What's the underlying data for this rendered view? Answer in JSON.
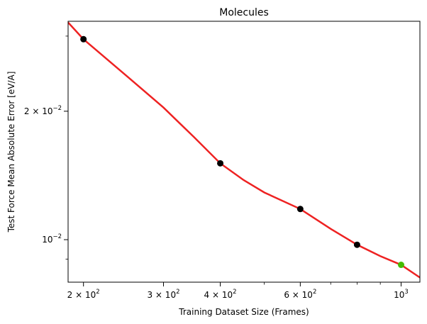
{
  "chart_data": {
    "type": "scatter",
    "title": "Molecules",
    "xlabel": "Training Dataset Size (Frames)",
    "ylabel": "Test Force Mean Absolute Error [eV/A]",
    "xscale": "log",
    "yscale": "log",
    "xlim": [
      185,
      1100
    ],
    "ylim": [
      0.00795,
      0.0325
    ],
    "grid": false,
    "x_ticks": [
      {
        "value": 200,
        "base": "2 × 10",
        "exp": "2"
      },
      {
        "value": 300,
        "base": "3 × 10",
        "exp": "2"
      },
      {
        "value": 400,
        "base": "4 × 10",
        "exp": "2"
      },
      {
        "value": 600,
        "base": "6 × 10",
        "exp": "2"
      },
      {
        "value": 1000,
        "base": "10",
        "exp": "3"
      }
    ],
    "x_minor_ticks": [
      500,
      700,
      800,
      900
    ],
    "y_ticks": [
      {
        "value": 0.02,
        "base": "2 × 10",
        "exp": "−2"
      },
      {
        "value": 0.01,
        "base": "10",
        "exp": "−2"
      }
    ],
    "y_minor_ticks": [
      0.009,
      0.03
    ],
    "series": [
      {
        "kind": "points",
        "color": "#000000",
        "x": [
          200,
          400,
          600,
          800
        ],
        "y": [
          0.0295,
          0.0151,
          0.0118,
          0.00973
        ]
      },
      {
        "kind": "points",
        "color": "#44bb00",
        "x": [
          1000
        ],
        "y": [
          0.00873
        ]
      },
      {
        "kind": "fit-line",
        "color": "#ee2222",
        "x": [
          185,
          200,
          250,
          300,
          350,
          400,
          450,
          500,
          600,
          700,
          800,
          900,
          1000,
          1100
        ],
        "y": [
          0.0323,
          0.0295,
          0.0241,
          0.0204,
          0.0174,
          0.0151,
          0.0138,
          0.0129,
          0.0118,
          0.0106,
          0.00973,
          0.00915,
          0.00873,
          0.00815
        ]
      }
    ]
  }
}
